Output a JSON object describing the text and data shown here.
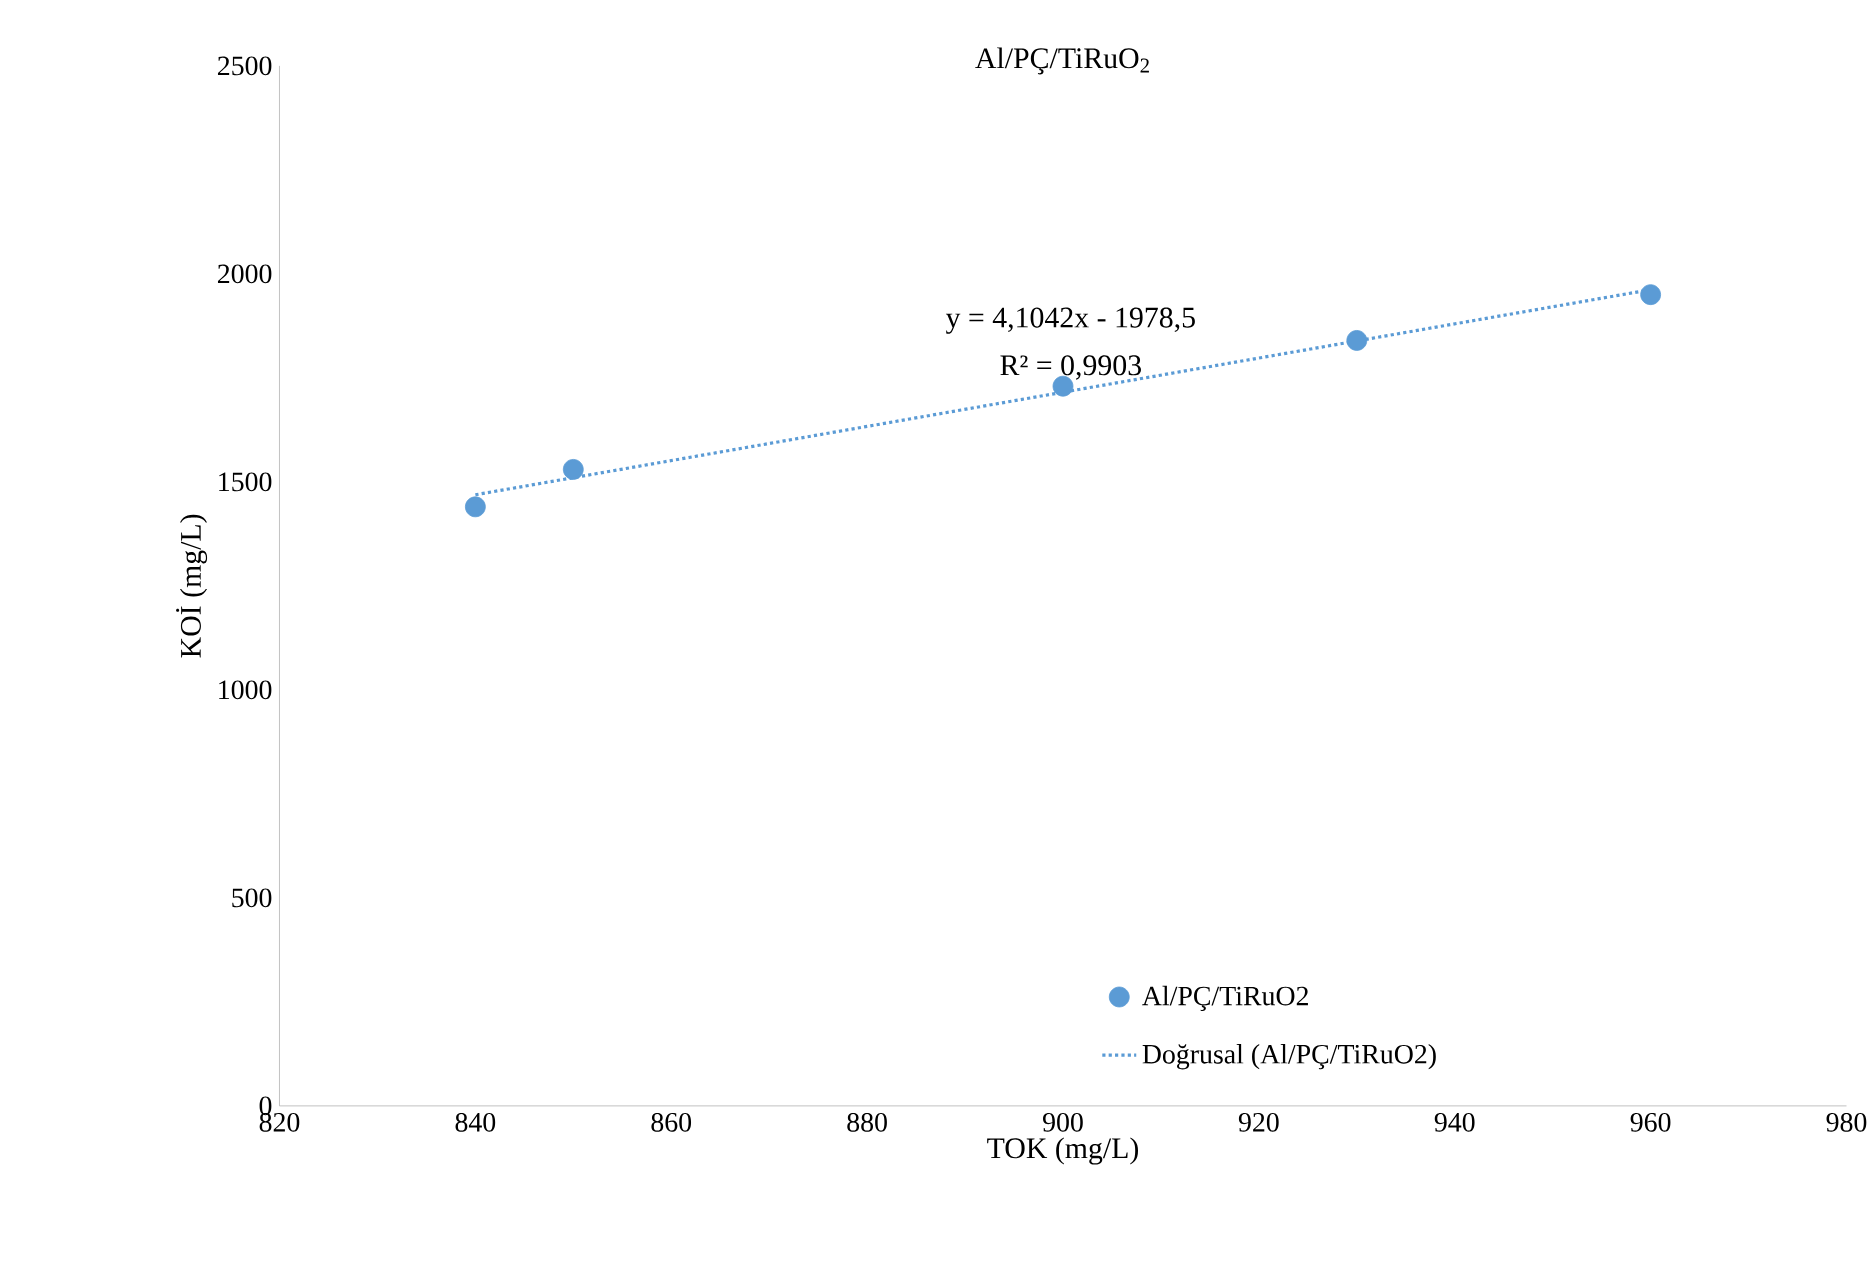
{
  "chart_data": {
    "type": "scatter",
    "title": "Al/PÇ/TiRuO$_{2}$",
    "xlabel": "TOK (mg/L)",
    "ylabel": "KOİ (mg/L)",
    "xlim": [
      820,
      980
    ],
    "xticks": [
      820,
      840,
      860,
      880,
      900,
      920,
      940,
      960,
      980
    ],
    "ylim": [
      0,
      2500
    ],
    "yticks": [
      0,
      500,
      1000,
      1500,
      2000,
      2500
    ],
    "series": [
      {
        "name": "Al/PÇ/TiRuO2",
        "color": "#5b9bd5",
        "marker": "circle",
        "x": [
          840,
          850,
          900,
          930,
          960
        ],
        "values": [
          1440,
          1530,
          1730,
          1840,
          1950
        ]
      },
      {
        "name": "Doğrusal (Al/PÇ/TiRuO2)",
        "type": "line",
        "color": "#5b9bd5",
        "marker": "none",
        "line_style": "dotted",
        "x": [
          840,
          960
        ],
        "values": [
          1469,
          1962
        ]
      }
    ],
    "annotations": [
      "y = 4,1042x - 1978,5",
      "R² = 0,9903"
    ],
    "grid": false,
    "legend": "bottom right"
  }
}
